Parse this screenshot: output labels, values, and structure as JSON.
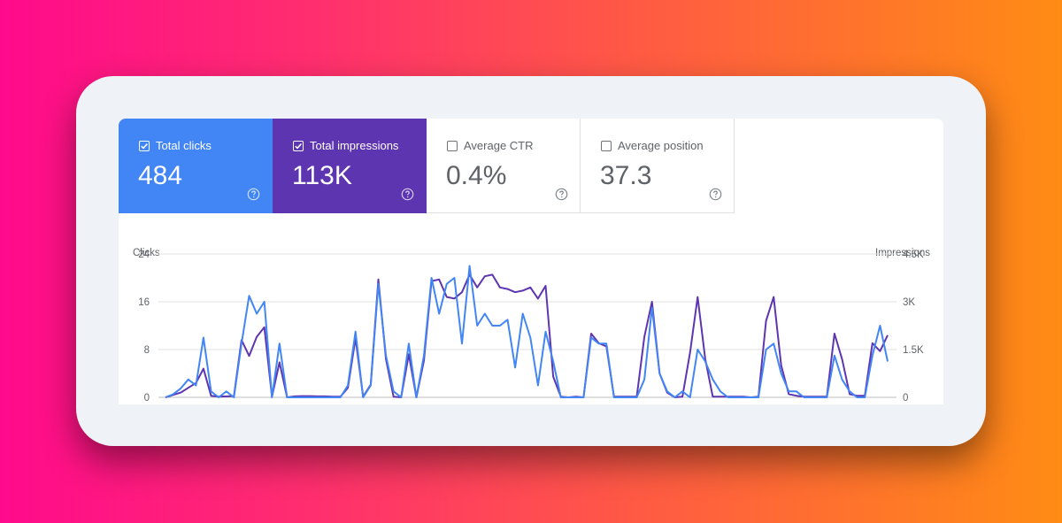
{
  "cards": [
    {
      "label": "Total clicks",
      "value": "484",
      "checked": true
    },
    {
      "label": "Total impressions",
      "value": "113K",
      "checked": true
    },
    {
      "label": "Average CTR",
      "value": "0.4%",
      "checked": false
    },
    {
      "label": "Average position",
      "value": "37.3",
      "checked": false
    }
  ],
  "colors": {
    "clicks": "#4285f4",
    "impressions": "#5e35b1",
    "grid": "#e0e0e0",
    "axis_text": "#5f6368"
  },
  "chart_data": {
    "type": "line",
    "title": "",
    "axes": {
      "left": {
        "label": "Clicks",
        "ticks": [
          "24",
          "16",
          "8",
          "0"
        ],
        "range": [
          0,
          24
        ]
      },
      "right": {
        "label": "Impressions",
        "ticks": [
          "4.5K",
          "3K",
          "1.5K",
          "0"
        ],
        "range": [
          0,
          4500
        ]
      }
    },
    "grid": true,
    "legend": "none",
    "series": [
      {
        "key": "clicks",
        "axis": "left",
        "values": [
          0,
          0.5,
          1.5,
          3,
          2,
          10,
          1,
          0,
          1,
          0,
          9,
          17,
          14,
          16,
          0,
          9,
          0,
          0,
          0,
          0,
          0,
          0,
          0,
          0,
          2,
          11,
          0,
          2,
          19,
          7,
          1,
          0,
          9,
          0,
          7,
          20,
          14,
          19,
          20,
          9,
          22,
          12,
          14,
          12,
          12,
          13,
          5,
          14,
          10,
          2,
          11,
          6,
          0,
          0,
          0,
          0,
          10,
          9,
          9,
          0,
          0,
          0,
          0,
          3,
          15,
          4,
          1,
          0,
          1,
          0,
          8,
          6,
          3,
          1,
          0,
          0,
          0,
          0,
          0,
          8,
          9,
          4,
          1,
          1,
          0,
          0,
          0,
          0,
          7,
          3,
          1,
          0,
          0,
          7,
          12,
          6
        ]
      },
      {
        "key": "impressions",
        "axis": "right",
        "values": [
          0,
          75,
          150,
          300,
          450,
          900,
          50,
          20,
          30,
          40,
          1800,
          1300,
          1900,
          2200,
          20,
          1100,
          0,
          30,
          40,
          40,
          30,
          30,
          20,
          20,
          300,
          1850,
          20,
          400,
          3700,
          1200,
          20,
          0,
          1350,
          0,
          1150,
          3650,
          3700,
          3150,
          3100,
          3300,
          3850,
          3450,
          3800,
          3850,
          3450,
          3400,
          3300,
          3350,
          3450,
          3100,
          3500,
          650,
          20,
          0,
          20,
          0,
          2000,
          1700,
          1600,
          20,
          20,
          20,
          20,
          1900,
          3000,
          750,
          150,
          0,
          20,
          1400,
          3150,
          1200,
          20,
          20,
          20,
          20,
          20,
          0,
          20,
          2400,
          3150,
          1000,
          100,
          50,
          20,
          20,
          20,
          20,
          2000,
          1200,
          100,
          50,
          50,
          1700,
          1450,
          1950
        ]
      }
    ]
  }
}
